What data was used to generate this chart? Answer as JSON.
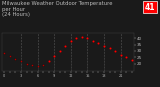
{
  "title": "Milwaukee Weather Outdoor Temperature  per Hour  (24 Hours)",
  "title_line1": "Milwaukee Weather Outdoor Temperature",
  "title_line2": "per Hour",
  "title_line3": "(24 Hours)",
  "background_color": "#1a1a1a",
  "plot_bg_color": "#1a1a1a",
  "grid_color": "#666666",
  "text_color": "#bbbbbb",
  "hours": [
    0,
    1,
    2,
    3,
    4,
    5,
    6,
    7,
    8,
    9,
    10,
    11,
    12,
    13,
    14,
    15,
    16,
    17,
    18,
    19,
    20,
    21,
    22,
    23
  ],
  "temps": [
    28,
    26,
    24,
    22,
    20,
    19,
    18,
    19,
    22,
    26,
    30,
    34,
    38,
    40,
    41,
    40,
    38,
    36,
    34,
    32,
    30,
    27,
    25,
    23
  ],
  "dot_color_red": "#ff0000",
  "dot_color_black": "#000000",
  "dot_colors_red": [
    0,
    0,
    0,
    0,
    0,
    0,
    0,
    0,
    1,
    1,
    1,
    1,
    1,
    1,
    1,
    1,
    1,
    1,
    1,
    1,
    1,
    1,
    1,
    1
  ],
  "current_temp": "41",
  "current_temp_box_color": "#ff0000",
  "ylim_min": 14,
  "ylim_max": 44,
  "ylabel_ticks": [
    20,
    25,
    30,
    35,
    40
  ],
  "dashed_grid_hours": [
    3,
    6,
    9,
    12,
    15,
    18,
    21
  ],
  "title_fontsize": 3.8,
  "tick_fontsize": 3.0,
  "markersize_red": 1.5,
  "markersize_black": 1.0
}
